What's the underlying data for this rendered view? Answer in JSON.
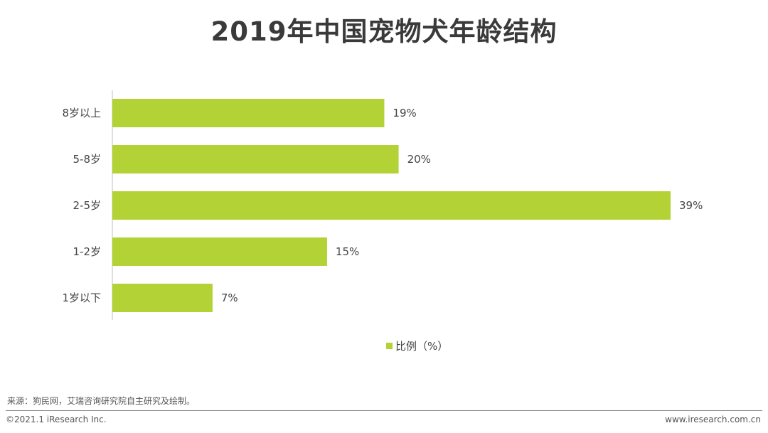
{
  "title": "2019年中国宠物犬年龄结构",
  "chart_data": {
    "type": "bar",
    "orientation": "horizontal",
    "categories": [
      "8岁以上",
      "5-8岁",
      "2-5岁",
      "1-2岁",
      "1岁以下"
    ],
    "series": [
      {
        "name": "比例（%）",
        "values": [
          19,
          20,
          39,
          15,
          7
        ]
      }
    ],
    "value_labels": [
      "19%",
      "20%",
      "39%",
      "15%",
      "7%"
    ],
    "color": "#b2d235",
    "xlim": [
      0,
      39
    ],
    "grid": false,
    "legend_position": "bottom-center"
  },
  "legend": {
    "label": "比例（%）"
  },
  "footer": {
    "source": "来源：狗民网，艾瑞咨询研究院自主研究及绘制。",
    "copyright": "©2021.1 iResearch Inc.",
    "website": "www.iresearch.com.cn"
  }
}
